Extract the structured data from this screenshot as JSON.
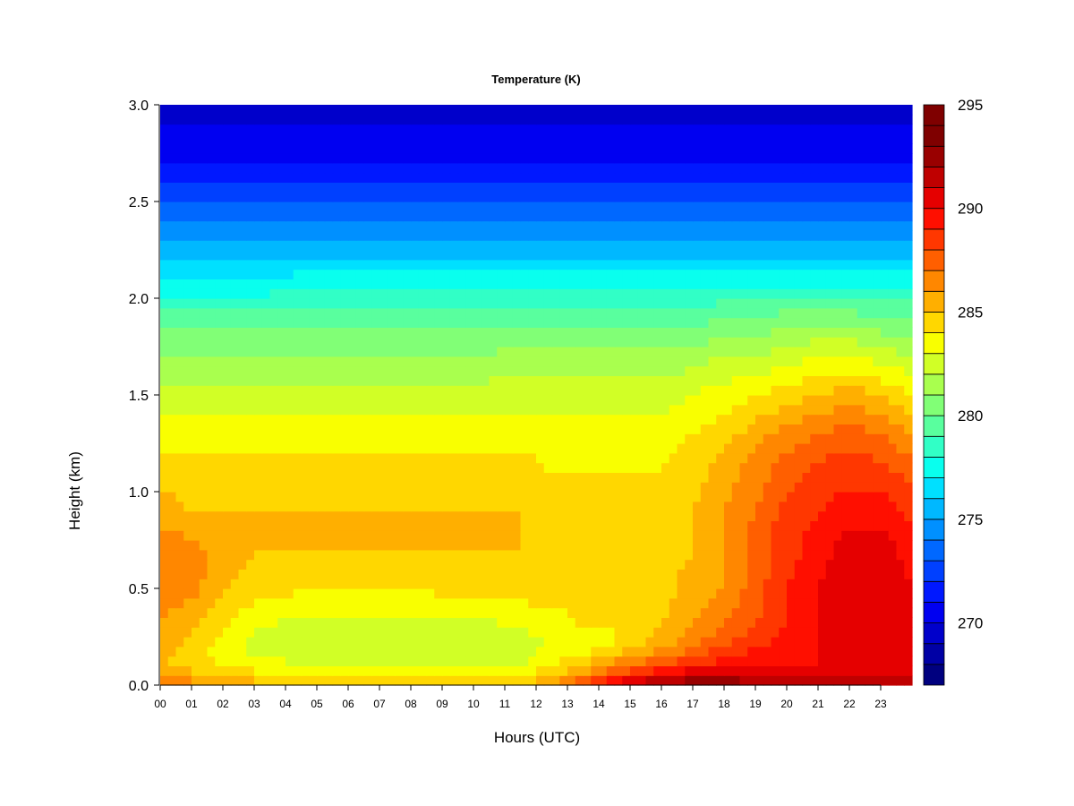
{
  "chart_data": {
    "type": "heatmap",
    "title": "Temperature (K)",
    "xlabel": "Hours (UTC)",
    "ylabel": "Height (km)",
    "xlim": [
      0,
      24
    ],
    "ylim": [
      0,
      3
    ],
    "x_ticks": [
      0,
      1,
      2,
      3,
      4,
      5,
      6,
      7,
      8,
      9,
      10,
      11,
      12,
      13,
      14,
      15,
      16,
      17,
      18,
      19,
      20,
      21,
      22,
      23
    ],
    "x_tick_labels": [
      "00",
      "01",
      "02",
      "03",
      "04",
      "05",
      "06",
      "07",
      "08",
      "09",
      "10",
      "11",
      "12",
      "13",
      "14",
      "15",
      "16",
      "17",
      "18",
      "19",
      "20",
      "21",
      "22",
      "23"
    ],
    "y_ticks": [
      0.0,
      0.5,
      1.0,
      1.5,
      2.0,
      2.5,
      3.0
    ],
    "y_tick_labels": [
      "0.0",
      "0.5",
      "1.0",
      "1.5",
      "2.0",
      "2.5",
      "3.0"
    ],
    "colorbar": {
      "min": 267,
      "max": 295,
      "ticks": [
        270,
        275,
        280,
        285,
        290,
        295
      ],
      "tick_labels": [
        "270",
        "275",
        "280",
        "285",
        "290",
        "295"
      ],
      "colors": [
        "#00007f",
        "#0000a5",
        "#0000cb",
        "#0000f1",
        "#0018ff",
        "#0040ff",
        "#0068ff",
        "#0090ff",
        "#00b8ff",
        "#00e0ff",
        "#09ffee",
        "#31ffc6",
        "#59ff9e",
        "#81ff76",
        "#a9ff4e",
        "#d1ff26",
        "#f9ff00",
        "#ffd700",
        "#ffaf00",
        "#ff8700",
        "#ff5f00",
        "#ff3700",
        "#ff0f00",
        "#e50000",
        "#bf0000",
        "#990000",
        "#7f0000",
        "#7f0000"
      ]
    },
    "temperature_grid": {
      "x_hours": [
        0,
        1,
        2,
        3,
        5,
        8,
        10,
        11.5,
        12.5,
        13.5,
        14.5,
        16,
        17,
        18,
        19,
        20,
        21,
        22,
        23,
        24
      ],
      "y_km": [
        0.0,
        0.05,
        0.1,
        0.2,
        0.3,
        0.5,
        0.7,
        0.9,
        1.1,
        1.3,
        1.5,
        1.7,
        1.9,
        2.1,
        2.3,
        2.5,
        2.7,
        3.0
      ],
      "values_K": [
        [
          286.5,
          286.5,
          286.0,
          285.5,
          285.5,
          285.0,
          285.0,
          285.0,
          286.5,
          288.0,
          290.5,
          292.5,
          293.0,
          293.0,
          292.5,
          292.5,
          292.5,
          292.5,
          292.5,
          292.5
        ],
        [
          285.5,
          285.5,
          285.0,
          284.5,
          284.0,
          284.0,
          283.5,
          284.0,
          285.0,
          286.5,
          288.5,
          290.5,
          291.5,
          291.5,
          291.0,
          291.0,
          291.0,
          291.0,
          291.0,
          291.0
        ],
        [
          285.0,
          284.5,
          284.0,
          283.5,
          283.0,
          283.0,
          283.0,
          283.0,
          284.0,
          285.0,
          286.5,
          288.0,
          289.0,
          289.5,
          289.5,
          290.0,
          290.0,
          290.0,
          290.0,
          290.0
        ],
        [
          285.5,
          284.5,
          283.5,
          282.5,
          282.0,
          282.0,
          282.0,
          282.5,
          283.0,
          283.5,
          284.0,
          285.5,
          287.0,
          288.0,
          289.0,
          289.5,
          290.0,
          290.5,
          290.5,
          290.5
        ],
        [
          286.0,
          285.0,
          284.0,
          283.0,
          282.5,
          282.5,
          282.5,
          283.0,
          283.5,
          284.0,
          284.0,
          285.0,
          286.0,
          287.0,
          288.0,
          289.0,
          290.0,
          290.5,
          290.5,
          290.0
        ],
        [
          286.5,
          286.5,
          285.0,
          284.5,
          284.0,
          284.0,
          284.5,
          284.5,
          284.5,
          284.5,
          284.5,
          284.5,
          285.5,
          286.0,
          287.5,
          289.0,
          290.0,
          291.0,
          291.0,
          290.0
        ],
        [
          286.5,
          286.5,
          285.5,
          285.0,
          285.0,
          285.0,
          285.0,
          285.0,
          285.0,
          284.5,
          284.5,
          284.5,
          285.0,
          286.0,
          287.5,
          288.5,
          289.5,
          290.5,
          290.5,
          289.5
        ],
        [
          285.5,
          285.0,
          285.0,
          285.0,
          285.0,
          285.0,
          285.0,
          285.0,
          284.5,
          284.5,
          284.5,
          284.5,
          285.0,
          286.0,
          287.0,
          288.5,
          289.0,
          289.5,
          289.5,
          288.5
        ],
        [
          284.5,
          284.5,
          284.5,
          284.5,
          284.5,
          284.5,
          284.5,
          284.5,
          284.0,
          284.0,
          284.0,
          284.0,
          284.5,
          285.5,
          286.5,
          287.5,
          288.5,
          288.5,
          288.5,
          287.5
        ],
        [
          283.5,
          283.5,
          283.5,
          283.5,
          283.5,
          283.5,
          283.5,
          283.5,
          283.5,
          283.5,
          283.5,
          283.5,
          284.0,
          284.5,
          285.5,
          286.5,
          287.0,
          287.5,
          287.0,
          286.0
        ],
        [
          282.5,
          282.5,
          282.5,
          282.5,
          282.5,
          282.5,
          282.5,
          282.5,
          282.5,
          282.5,
          282.5,
          282.5,
          283.0,
          283.5,
          284.0,
          284.5,
          285.0,
          285.5,
          285.0,
          284.0
        ],
        [
          281.0,
          281.0,
          281.0,
          281.0,
          281.0,
          281.0,
          281.0,
          281.5,
          281.5,
          281.5,
          281.5,
          281.5,
          281.5,
          282.0,
          282.0,
          282.5,
          283.0,
          283.0,
          282.5,
          282.0
        ],
        [
          279.5,
          279.5,
          279.5,
          279.5,
          279.5,
          279.5,
          279.5,
          279.5,
          279.5,
          279.5,
          279.5,
          279.5,
          279.5,
          280.0,
          280.0,
          280.5,
          280.5,
          280.5,
          280.0,
          280.0
        ],
        [
          277.0,
          277.0,
          277.0,
          277.0,
          277.5,
          277.5,
          277.5,
          277.5,
          277.5,
          277.5,
          277.5,
          277.5,
          277.5,
          277.5,
          277.5,
          277.5,
          277.5,
          277.5,
          277.5,
          277.5
        ],
        [
          275.0,
          275.0,
          275.0,
          275.0,
          275.0,
          275.0,
          275.0,
          275.0,
          275.0,
          275.0,
          275.0,
          275.0,
          275.0,
          275.0,
          275.0,
          275.0,
          275.0,
          275.0,
          275.0,
          275.0
        ],
        [
          273.0,
          273.0,
          273.0,
          273.0,
          273.0,
          273.0,
          273.0,
          273.0,
          273.0,
          273.0,
          273.0,
          273.0,
          273.0,
          273.0,
          273.0,
          273.0,
          273.0,
          273.0,
          273.0,
          273.0
        ],
        [
          271.0,
          271.0,
          271.0,
          271.0,
          271.0,
          271.0,
          271.0,
          271.0,
          271.0,
          271.0,
          271.0,
          271.0,
          271.0,
          271.0,
          271.0,
          271.0,
          271.0,
          271.0,
          271.0,
          271.0
        ],
        [
          269.5,
          269.5,
          269.5,
          269.5,
          269.5,
          269.5,
          269.5,
          269.5,
          269.5,
          269.5,
          269.5,
          269.5,
          269.5,
          269.5,
          269.5,
          269.5,
          269.5,
          269.5,
          269.5,
          269.5
        ]
      ]
    }
  }
}
